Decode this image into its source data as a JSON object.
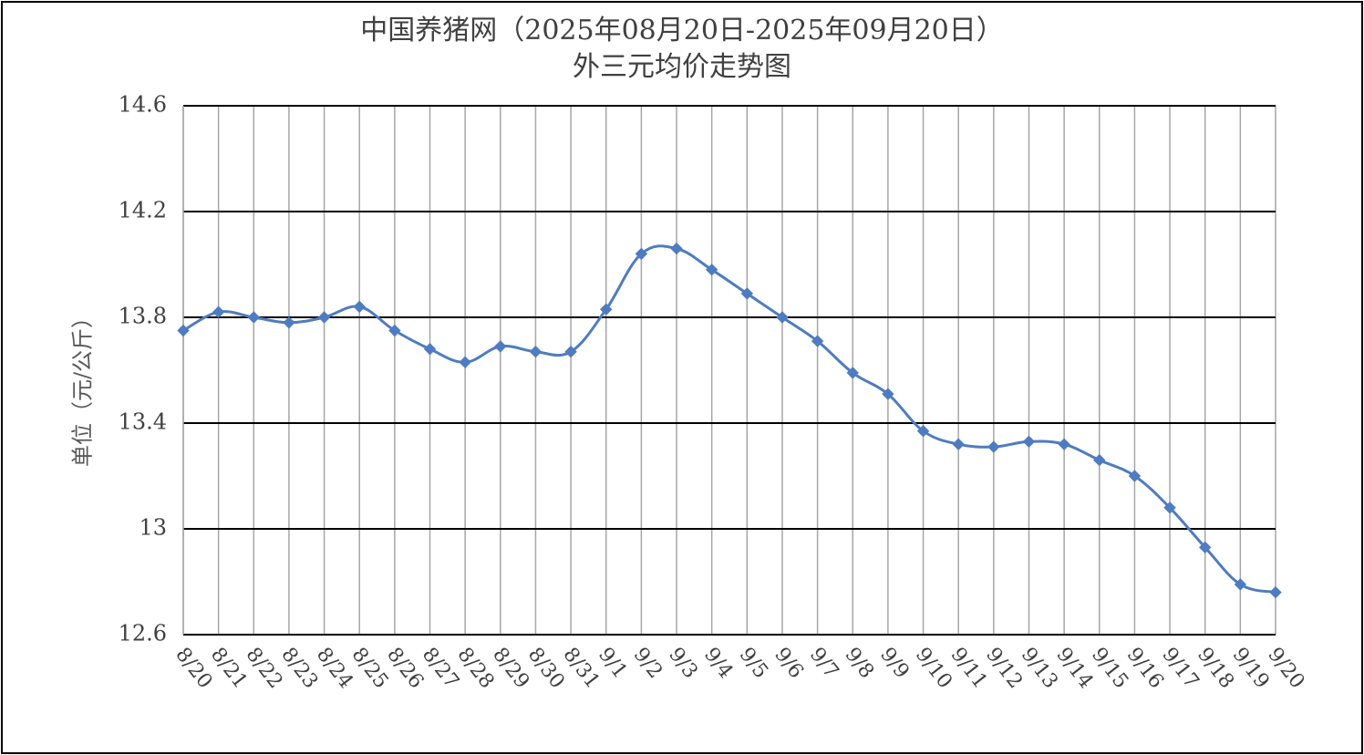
{
  "chart_data": {
    "type": "line",
    "title": "中国养猪网（2025年08月20日-2025年09月20日）",
    "subtitle": "外三元均价走势图",
    "xlabel": "",
    "ylabel": "单位（元/公斤）",
    "ylim": [
      12.6,
      14.6
    ],
    "yticks": [
      12.6,
      13,
      13.4,
      13.8,
      14.2,
      14.6
    ],
    "ytick_labels": [
      "12.6",
      "13",
      "13.4",
      "13.8",
      "14.2",
      "14.6"
    ],
    "grid": true,
    "legend": "none",
    "categories": [
      "8/20",
      "8/21",
      "8/22",
      "8/23",
      "8/24",
      "8/25",
      "8/26",
      "8/27",
      "8/28",
      "8/29",
      "8/30",
      "8/31",
      "9/1",
      "9/2",
      "9/3",
      "9/4",
      "9/5",
      "9/6",
      "9/7",
      "9/8",
      "9/9",
      "9/10",
      "9/11",
      "9/12",
      "9/13",
      "9/14",
      "9/15",
      "9/16",
      "9/17",
      "9/18",
      "9/19",
      "9/20"
    ],
    "series": [
      {
        "values": [
          13.75,
          13.82,
          13.8,
          13.78,
          13.8,
          13.84,
          13.75,
          13.68,
          13.63,
          13.69,
          13.67,
          13.67,
          13.83,
          14.04,
          14.06,
          13.98,
          13.89,
          13.8,
          13.71,
          13.59,
          13.51,
          13.37,
          13.32,
          13.31,
          13.33,
          13.32,
          13.26,
          13.2,
          13.08,
          12.93,
          12.79,
          12.76
        ],
        "color": "#4F7CC0"
      }
    ],
    "colors": {
      "line": "#4F7CC0",
      "gridline": "#000000",
      "vgrid": "#A6A6A6",
      "text": "#404040"
    }
  }
}
